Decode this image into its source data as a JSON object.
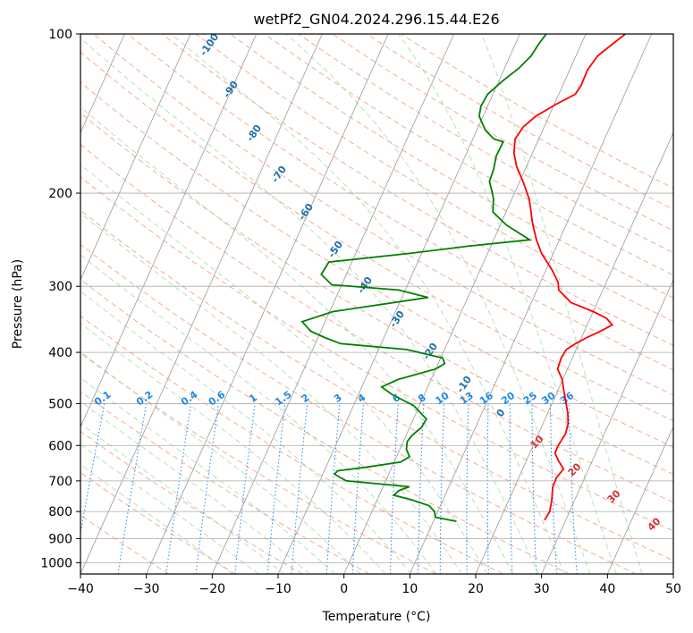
{
  "chart_data": {
    "type": "skew-t",
    "title": "wetPf2_GN04.2024.296.15.44.E26",
    "xlabel": "Temperature (°C)",
    "ylabel": "Pressure (hPa)",
    "xlim": [
      -40,
      50
    ],
    "ylim": [
      1050,
      100
    ],
    "x_ticks": [
      -40,
      -30,
      -20,
      -10,
      0,
      10,
      20,
      30,
      40,
      50
    ],
    "y_ticks": [
      1000,
      900,
      800,
      700,
      600,
      500,
      400,
      300,
      200,
      100
    ],
    "y_scale": "log",
    "grid": true,
    "dry_adiabat_labels": [
      "-100",
      "-90",
      "-80",
      "-70",
      "-60",
      "-50",
      "-40",
      "-30",
      "-20",
      "-10",
      "0"
    ],
    "moist_adiabat_labels": [
      "10",
      "20",
      "30",
      "40"
    ],
    "mixing_ratio_labels": [
      "0.1",
      "0.2",
      "0.4",
      "0.6",
      "1",
      "1.5",
      "2",
      "3",
      "4",
      "6",
      "8",
      "10",
      "13",
      "16",
      "20",
      "25",
      "30",
      "36"
    ],
    "series": [
      {
        "color": "#ff0000",
        "points": [
          [
            26.8,
            830
          ],
          [
            27.0,
            800
          ],
          [
            26.5,
            760
          ],
          [
            25.8,
            720
          ],
          [
            25.7,
            690
          ],
          [
            26.2,
            665
          ],
          [
            24.8,
            640
          ],
          [
            23.8,
            620
          ],
          [
            23.8,
            600
          ],
          [
            24.1,
            570
          ],
          [
            23.8,
            545
          ],
          [
            23.0,
            520
          ],
          [
            21.7,
            490
          ],
          [
            20.8,
            470
          ],
          [
            19.9,
            450
          ],
          [
            18.5,
            430
          ],
          [
            18.3,
            410
          ],
          [
            18.5,
            395
          ],
          [
            19.5,
            385
          ],
          [
            20.8,
            375
          ],
          [
            22.7,
            363
          ],
          [
            23.8,
            355
          ],
          [
            22.5,
            345
          ],
          [
            20.0,
            335
          ],
          [
            16.0,
            322
          ],
          [
            13.3,
            305
          ],
          [
            12.7,
            295
          ],
          [
            11.0,
            280
          ],
          [
            8.2,
            260
          ],
          [
            6.5,
            245
          ],
          [
            5.5,
            235
          ],
          [
            4.5,
            225
          ],
          [
            3.6,
            215
          ],
          [
            2.6,
            205
          ],
          [
            0.5,
            190
          ],
          [
            -1.5,
            178
          ],
          [
            -2.8,
            168
          ],
          [
            -3.6,
            158
          ],
          [
            -3.2,
            150
          ],
          [
            -2.0,
            143
          ],
          [
            0.2,
            136
          ],
          [
            2.5,
            130
          ],
          [
            2.8,
            125
          ],
          [
            2.7,
            117
          ],
          [
            3.3,
            110
          ],
          [
            4.6,
            105
          ],
          [
            6.0,
            100
          ]
        ]
      },
      {
        "color": "#008000",
        "points": [
          [
            13.5,
            835
          ],
          [
            10.0,
            820
          ],
          [
            9.5,
            800
          ],
          [
            8.3,
            780
          ],
          [
            5.2,
            760
          ],
          [
            2.2,
            745
          ],
          [
            2.7,
            730
          ],
          [
            4.0,
            718
          ],
          [
            -6.0,
            700
          ],
          [
            -8.2,
            680
          ],
          [
            -8.0,
            670
          ],
          [
            -4.0,
            660
          ],
          [
            1.0,
            645
          ],
          [
            2.0,
            630
          ],
          [
            1.0,
            610
          ],
          [
            0.6,
            590
          ],
          [
            0.9,
            575
          ],
          [
            1.8,
            555
          ],
          [
            2.0,
            535
          ],
          [
            -0.8,
            505
          ],
          [
            -5.0,
            480
          ],
          [
            -7.0,
            465
          ],
          [
            -5.0,
            450
          ],
          [
            0.0,
            430
          ],
          [
            1.0,
            420
          ],
          [
            0.3,
            410
          ],
          [
            -5.8,
            395
          ],
          [
            -16.2,
            385
          ],
          [
            -19.0,
            375
          ],
          [
            -21.5,
            365
          ],
          [
            -23.5,
            350
          ],
          [
            -19.5,
            335
          ],
          [
            -6.0,
            315
          ],
          [
            -11.0,
            305
          ],
          [
            -21.5,
            298
          ],
          [
            -23.8,
            285
          ],
          [
            -23.5,
            270
          ],
          [
            -11.8,
            260
          ],
          [
            -3.5,
            252
          ],
          [
            5.5,
            245
          ],
          [
            1.0,
            230
          ],
          [
            -2.0,
            217
          ],
          [
            -2.8,
            205
          ],
          [
            -3.6,
            198
          ],
          [
            -4.6,
            190
          ],
          [
            -4.8,
            180
          ],
          [
            -5.3,
            170
          ],
          [
            -5.2,
            160
          ],
          [
            -6.8,
            158
          ],
          [
            -8.7,
            152
          ],
          [
            -10.6,
            143
          ],
          [
            -11.0,
            137
          ],
          [
            -10.8,
            130
          ],
          [
            -9.5,
            123
          ],
          [
            -7.8,
            116
          ],
          [
            -6.8,
            110
          ],
          [
            -6.5,
            105
          ],
          [
            -6.0,
            100
          ]
        ]
      }
    ]
  }
}
